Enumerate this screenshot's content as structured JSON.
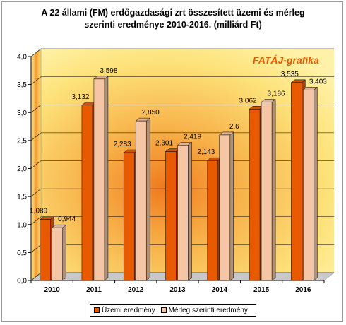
{
  "chart_data": {
    "type": "bar",
    "title": "A 22 állami (FM) erdőgazdasági zrt összesített üzemi és mérleg szerinti eredménye 2010-2016. (milliárd Ft)",
    "title_line1": "A 22 állami (FM) erdőgazdasági zrt összesített üzemi és mérleg",
    "title_line2": "szerinti eredménye 2010-2016. (milliárd Ft)",
    "watermark": "FATÁJ-grafika",
    "categories": [
      "2010",
      "2011",
      "2012",
      "2013",
      "2014",
      "2015",
      "2016"
    ],
    "series": [
      {
        "name": "Üzemi eredmény",
        "values": [
          1.089,
          3.132,
          2.283,
          2.301,
          2.143,
          3.062,
          3.535
        ],
        "labels": [
          "1,089",
          "3,132",
          "2,283",
          "2,301",
          "2,143",
          "3,062",
          "3,535"
        ],
        "color": "#e85a00"
      },
      {
        "name": "Mérleg szerinti eredmény",
        "values": [
          0.944,
          3.598,
          2.85,
          2.419,
          2.6,
          3.186,
          3.403
        ],
        "labels": [
          "0,944",
          "3,598",
          "2,850",
          "2,419",
          "2,6",
          "3,186",
          "3,403"
        ],
        "color": "#f5c6a5"
      }
    ],
    "ylim": [
      0,
      4.0
    ],
    "yticks": [
      "0,0",
      "0,5",
      "1,0",
      "1,5",
      "2,0",
      "2,5",
      "3,0",
      "3,5",
      "4,0"
    ],
    "xlabel": "",
    "ylabel": "",
    "grid": true,
    "legend_position": "bottom"
  }
}
